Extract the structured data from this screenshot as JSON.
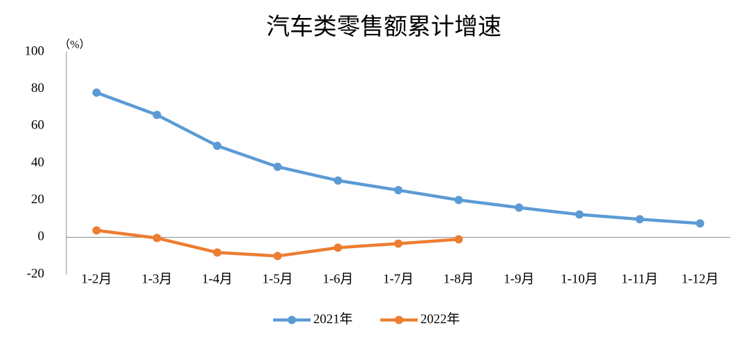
{
  "chart_data": {
    "type": "line",
    "title": "汽车类零售额累计增速",
    "y_unit": "（%）",
    "categories": [
      "1-2月",
      "1-3月",
      "1-4月",
      "1-5月",
      "1-6月",
      "1-7月",
      "1-8月",
      "1-9月",
      "1-10月",
      "1-11月",
      "1-12月"
    ],
    "series": [
      {
        "name": "2021年",
        "color": "#5b9bd5",
        "values": [
          78,
          66,
          49.3,
          38,
          30.6,
          25.4,
          20.1,
          16,
          12.3,
          9.7,
          7.5
        ]
      },
      {
        "name": "2022年",
        "color": "#ed7d31",
        "values": [
          3.7,
          -0.4,
          -8.2,
          -10.1,
          -5.6,
          -3.4,
          -1.1,
          null,
          null,
          null,
          null
        ]
      }
    ],
    "ylim": [
      -20,
      100
    ],
    "yticks": [
      -20,
      0,
      20,
      40,
      60,
      80,
      100
    ],
    "negative_tick_color": "#ff0000",
    "grid": false,
    "legend": "bottom"
  }
}
